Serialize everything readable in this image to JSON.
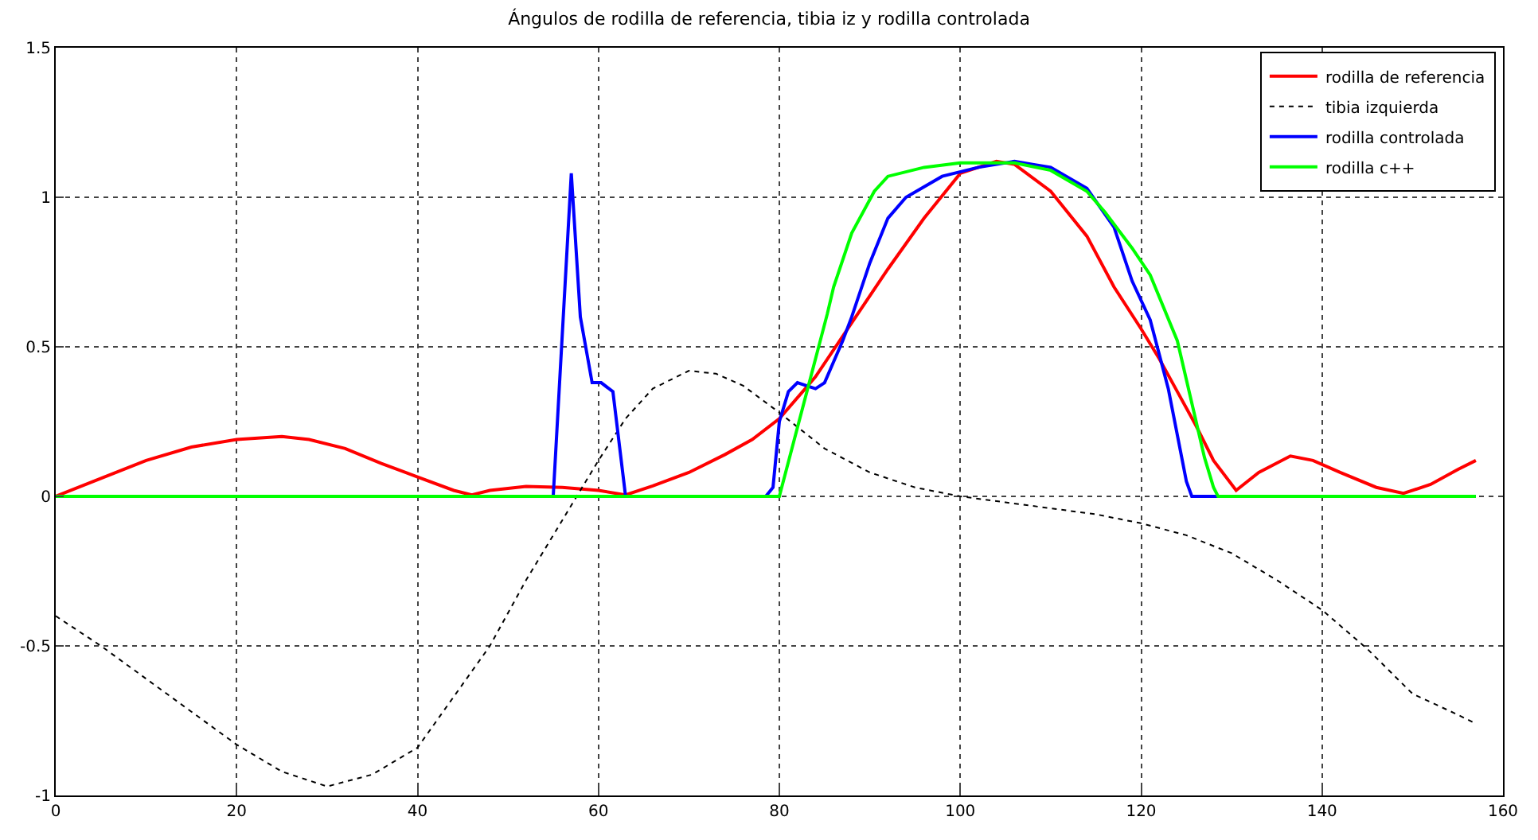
{
  "chart_data": {
    "type": "line",
    "title": "Ángulos de rodilla de referencia, tibia iz y rodilla controlada",
    "xlim": [
      0,
      160
    ],
    "xticks": [
      0,
      20,
      40,
      60,
      80,
      100,
      120,
      140,
      160
    ],
    "ylim": [
      -1,
      1.5
    ],
    "yticks": [
      -1,
      -0.5,
      0,
      0.5,
      1,
      1.5
    ],
    "grid": true,
    "legend": "top right",
    "marker": "none",
    "series": [
      {
        "name": "rodilla de referencia",
        "color": "#ff0000",
        "line_style": "solid",
        "x": [
          0,
          5,
          10,
          15,
          20,
          25,
          28,
          32,
          36,
          40,
          44,
          46,
          48,
          52,
          56,
          60,
          63,
          66,
          70,
          74,
          77,
          80,
          84,
          88,
          92,
          96,
          100,
          104,
          106,
          110,
          114,
          117,
          120,
          122,
          124,
          126,
          128,
          130.5,
          133,
          136.5,
          139,
          142,
          146,
          149,
          152,
          155,
          157
        ],
        "values": [
          0,
          0.06,
          0.12,
          0.165,
          0.19,
          0.2,
          0.19,
          0.16,
          0.11,
          0.065,
          0.02,
          0.005,
          0.02,
          0.033,
          0.03,
          0.02,
          0.005,
          0.035,
          0.08,
          0.14,
          0.19,
          0.26,
          0.4,
          0.58,
          0.76,
          0.93,
          1.08,
          1.12,
          1.11,
          1.02,
          0.87,
          0.7,
          0.56,
          0.46,
          0.35,
          0.24,
          0.12,
          0.02,
          0.08,
          0.135,
          0.12,
          0.08,
          0.03,
          0.01,
          0.04,
          0.09,
          0.12
        ]
      },
      {
        "name": "tibia izquierda",
        "color": "#000000",
        "line_style": "dotted",
        "x": [
          0,
          5,
          10,
          15,
          20,
          25,
          30,
          35,
          40,
          44,
          48,
          52,
          57,
          60,
          63,
          66,
          70,
          73,
          76,
          80,
          85,
          90,
          95,
          100,
          105,
          110,
          115,
          120,
          125,
          130,
          135,
          140,
          145,
          150,
          155,
          157
        ],
        "values": [
          -0.4,
          -0.5,
          -0.61,
          -0.72,
          -0.83,
          -0.92,
          -0.97,
          -0.93,
          -0.84,
          -0.67,
          -0.5,
          -0.28,
          -0.03,
          0.12,
          0.26,
          0.36,
          0.42,
          0.41,
          0.37,
          0.28,
          0.16,
          0.08,
          0.03,
          0.0,
          -0.02,
          -0.04,
          -0.06,
          -0.09,
          -0.13,
          -0.19,
          -0.28,
          -0.38,
          -0.51,
          -0.66,
          -0.73,
          -0.76
        ]
      },
      {
        "name": "rodilla controlada",
        "color": "#0000ff",
        "line_style": "solid",
        "x": [
          0,
          55,
          57,
          58,
          59.3,
          60.3,
          61.6,
          63,
          78.5,
          79.3,
          80,
          81,
          82,
          83,
          84,
          85,
          86,
          87,
          88,
          90,
          92,
          94,
          98,
          102,
          106,
          108,
          110,
          114,
          117,
          119,
          121,
          123,
          125,
          125.6,
          157
        ],
        "values": [
          0,
          0,
          1.08,
          0.6,
          0.38,
          0.38,
          0.35,
          0,
          0,
          0.03,
          0.25,
          0.35,
          0.38,
          0.37,
          0.36,
          0.38,
          0.45,
          0.52,
          0.6,
          0.78,
          0.93,
          1.0,
          1.07,
          1.1,
          1.12,
          1.11,
          1.1,
          1.03,
          0.9,
          0.72,
          0.59,
          0.36,
          0.05,
          0,
          0
        ]
      },
      {
        "name": "rodilla c++",
        "color": "#00ff00",
        "line_style": "solid",
        "x": [
          0,
          80,
          82,
          84,
          85.3,
          86,
          88,
          90.5,
          92,
          96,
          100,
          106,
          110,
          114,
          116,
          119,
          121,
          124,
          126,
          127,
          128,
          128.5,
          157
        ],
        "values": [
          0,
          0,
          0.23,
          0.46,
          0.61,
          0.7,
          0.88,
          1.02,
          1.07,
          1.1,
          1.115,
          1.115,
          1.09,
          1.02,
          0.95,
          0.83,
          0.74,
          0.52,
          0.26,
          0.13,
          0.03,
          0,
          0
        ]
      }
    ]
  }
}
